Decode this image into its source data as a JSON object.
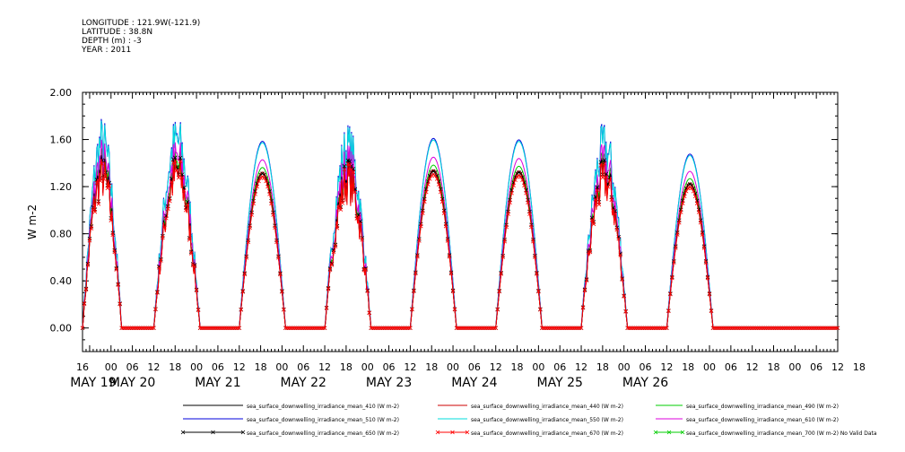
{
  "header": {
    "lines": [
      "LONGITUDE : 121.9W(-121.9)",
      "LATITUDE : 38.8N",
      "DEPTH (m) : -3",
      "YEAR : 2011"
    ]
  },
  "chart_data": {
    "type": "line",
    "title": "",
    "ylabel": "W m-2",
    "xlabel": "",
    "ylim": [
      -0.2,
      2.0
    ],
    "yticks": [
      0.0,
      0.4,
      0.8,
      1.2,
      1.6,
      2.0
    ],
    "ytick_labels": [
      "0.00",
      "0.40",
      "0.80",
      "1.20",
      "1.60",
      "2.00"
    ],
    "x_range_hours": [
      -8,
      204
    ],
    "x_axis_zero": "2011-05-19T00:00",
    "hour_tick_labels": [
      {
        "h": -8,
        "label": "16"
      },
      {
        "h": 0,
        "label": "00"
      },
      {
        "h": 6,
        "label": "06"
      },
      {
        "h": 12,
        "label": "12"
      },
      {
        "h": 18,
        "label": "18"
      },
      {
        "h": 24,
        "label": "00"
      },
      {
        "h": 30,
        "label": "06"
      },
      {
        "h": 36,
        "label": "12"
      },
      {
        "h": 42,
        "label": "18"
      },
      {
        "h": 48,
        "label": "00"
      },
      {
        "h": 54,
        "label": "06"
      },
      {
        "h": 60,
        "label": "12"
      },
      {
        "h": 66,
        "label": "18"
      },
      {
        "h": 72,
        "label": "00"
      },
      {
        "h": 78,
        "label": "06"
      },
      {
        "h": 84,
        "label": "12"
      },
      {
        "h": 90,
        "label": "18"
      },
      {
        "h": 96,
        "label": "00"
      },
      {
        "h": 102,
        "label": "06"
      },
      {
        "h": 108,
        "label": "12"
      },
      {
        "h": 114,
        "label": "18"
      },
      {
        "h": 120,
        "label": "00"
      },
      {
        "h": 126,
        "label": "06"
      },
      {
        "h": 132,
        "label": "12"
      },
      {
        "h": 138,
        "label": "18"
      },
      {
        "h": 144,
        "label": "00"
      },
      {
        "h": 150,
        "label": "06"
      },
      {
        "h": 156,
        "label": "12"
      },
      {
        "h": 162,
        "label": "18"
      },
      {
        "h": 168,
        "label": "00"
      },
      {
        "h": 174,
        "label": "06"
      },
      {
        "h": 180,
        "label": "12"
      },
      {
        "h": 186,
        "label": "18"
      },
      {
        "h": 192,
        "label": "00"
      },
      {
        "h": 198,
        "label": "06"
      },
      {
        "h": 204,
        "label": "12"
      },
      {
        "h": 210,
        "label": "18"
      }
    ],
    "date_labels": [
      {
        "h": -5,
        "label": "MAY 19"
      },
      {
        "h": 6,
        "label": "MAY 20"
      },
      {
        "h": 30,
        "label": "MAY 21"
      },
      {
        "h": 54,
        "label": "MAY 22"
      },
      {
        "h": 78,
        "label": "MAY 23"
      },
      {
        "h": 102,
        "label": "MAY 24"
      },
      {
        "h": 126,
        "label": "MAY 25"
      },
      {
        "h": 150,
        "label": "MAY 26"
      }
    ],
    "days": [
      {
        "start_h": -8,
        "end_h": 3,
        "peak_h": -6,
        "peak": 1.34,
        "disturbed": true
      },
      {
        "start_h": 12,
        "end_h": 25,
        "peak_h": 18.5,
        "peak": 1.35,
        "disturbed": true
      },
      {
        "start_h": 36,
        "end_h": 49,
        "peak_h": 42.5,
        "peak": 1.31,
        "disturbed": false
      },
      {
        "start_h": 60,
        "end_h": 73,
        "peak_h": 66.5,
        "peak": 1.3,
        "disturbed": true
      },
      {
        "start_h": 84,
        "end_h": 97,
        "peak_h": 90.5,
        "peak": 1.33,
        "disturbed": false
      },
      {
        "start_h": 108,
        "end_h": 121,
        "peak_h": 114.5,
        "peak": 1.32,
        "disturbed": false
      },
      {
        "start_h": 132,
        "end_h": 145,
        "peak_h": 138.5,
        "peak": 1.3,
        "disturbed": true
      },
      {
        "start_h": 156,
        "end_h": 169,
        "peak_h": 162.5,
        "peak": 1.22,
        "disturbed": false
      }
    ],
    "series": [
      {
        "name": "sea_surface_downwelling_irradiance_mean_410 (W m-2)",
        "color": "#000000",
        "marker": "none",
        "scale": 1.0
      },
      {
        "name": "sea_surface_downwelling_irradiance_mean_440 (W m-2)",
        "color": "#cc0000",
        "marker": "none",
        "scale": 1.01
      },
      {
        "name": "sea_surface_downwelling_irradiance_mean_490 (W m-2)",
        "color": "#00cc00",
        "marker": "none",
        "scale": 1.04
      },
      {
        "name": "sea_surface_downwelling_irradiance_mean_510 (W m-2)",
        "color": "#0000dd",
        "marker": "none",
        "scale": 1.21
      },
      {
        "name": "sea_surface_downwelling_irradiance_mean_550 (W m-2)",
        "color": "#00dddd",
        "marker": "none",
        "scale": 1.2
      },
      {
        "name": "sea_surface_downwelling_irradiance_mean_610 (W m-2)",
        "color": "#dd00dd",
        "marker": "none",
        "scale": 1.09
      },
      {
        "name": "sea_surface_downwelling_irradiance_mean_650 (W m-2)",
        "color": "#000000",
        "marker": "x",
        "scale": 1.0
      },
      {
        "name": "sea_surface_downwelling_irradiance_mean_670 (W m-2)",
        "color": "#ff0000",
        "marker": "x",
        "scale": 0.98
      },
      {
        "name": "sea_surface_downwelling_irradiance_mean_700 (W m-2) No Valid Data",
        "color": "#00cc00",
        "marker": "x",
        "scale": 0.0
      }
    ]
  }
}
